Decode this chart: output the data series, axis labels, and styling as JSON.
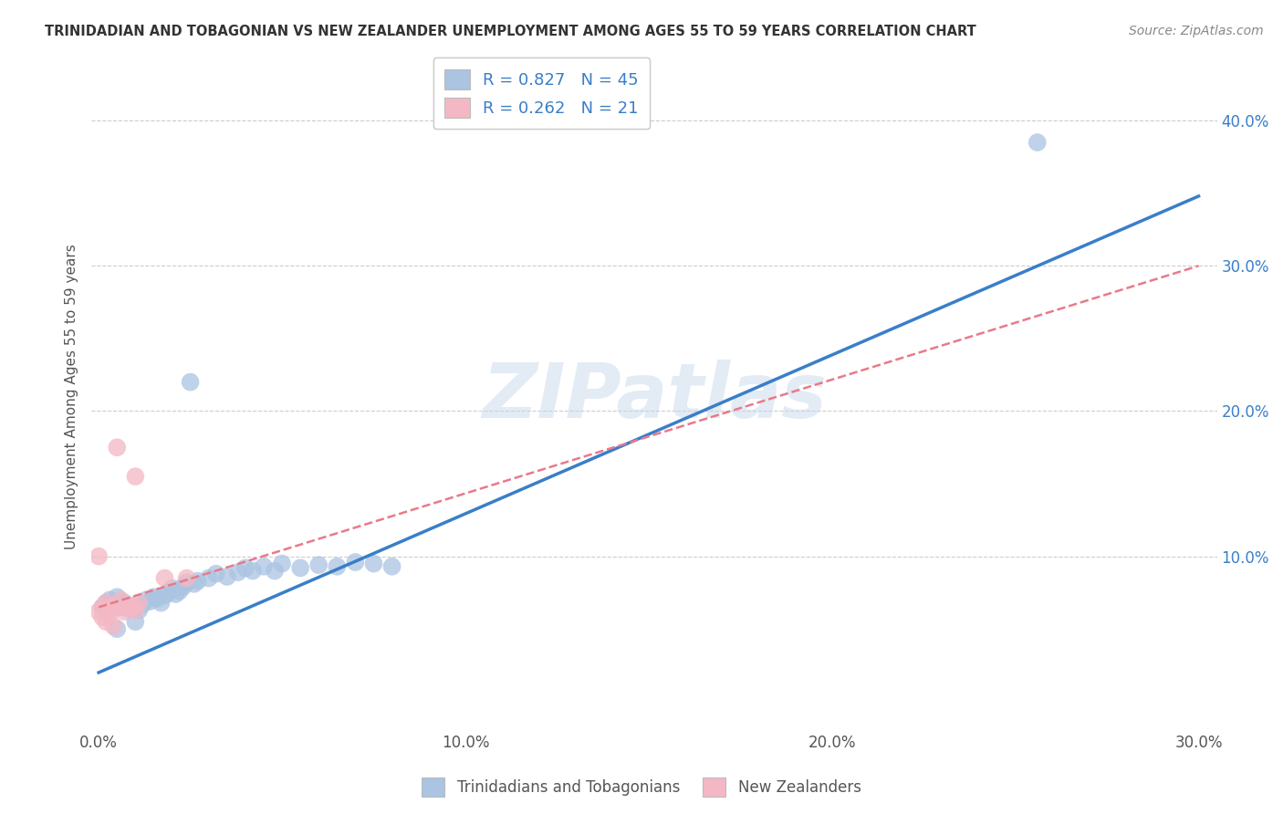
{
  "title": "TRINIDADIAN AND TOBAGONIAN VS NEW ZEALANDER UNEMPLOYMENT AMONG AGES 55 TO 59 YEARS CORRELATION CHART",
  "source": "Source: ZipAtlas.com",
  "ylabel": "Unemployment Among Ages 55 to 59 years",
  "xlim": [
    -0.002,
    0.305
  ],
  "ylim": [
    -0.02,
    0.44
  ],
  "xtick_labels": [
    "0.0%",
    "",
    "",
    "",
    "",
    "",
    "",
    "",
    "",
    "",
    "10.0%",
    "",
    "",
    "",
    "",
    "",
    "",
    "",
    "",
    "",
    "20.0%",
    "",
    "",
    "",
    "",
    "",
    "",
    "",
    "",
    "",
    "30.0%"
  ],
  "xtick_vals": [
    0.0,
    0.1,
    0.2,
    0.3
  ],
  "xtick_display": [
    "0.0%",
    "10.0%",
    "20.0%",
    "30.0%"
  ],
  "ytick_vals": [
    0.1,
    0.2,
    0.3,
    0.4
  ],
  "ytick_labels": [
    "10.0%",
    "20.0%",
    "30.0%",
    "40.0%"
  ],
  "legend_items": [
    {
      "label": "R = 0.827   N = 45",
      "color": "#aac4e2"
    },
    {
      "label": "R = 0.262   N = 21",
      "color": "#f4b8c4"
    }
  ],
  "legend_labels_bottom": [
    "Trinidadians and Tobagonians",
    "New Zealanders"
  ],
  "blue_scatter": [
    [
      0.001,
      0.065
    ],
    [
      0.002,
      0.068
    ],
    [
      0.003,
      0.07
    ],
    [
      0.004,
      0.066
    ],
    [
      0.005,
      0.072
    ],
    [
      0.006,
      0.065
    ],
    [
      0.007,
      0.068
    ],
    [
      0.008,
      0.064
    ],
    [
      0.009,
      0.066
    ],
    [
      0.01,
      0.065
    ],
    [
      0.011,
      0.063
    ],
    [
      0.012,
      0.067
    ],
    [
      0.013,
      0.07
    ],
    [
      0.014,
      0.069
    ],
    [
      0.015,
      0.072
    ],
    [
      0.016,
      0.071
    ],
    [
      0.017,
      0.068
    ],
    [
      0.018,
      0.073
    ],
    [
      0.019,
      0.075
    ],
    [
      0.02,
      0.078
    ],
    [
      0.021,
      0.074
    ],
    [
      0.022,
      0.076
    ],
    [
      0.023,
      0.079
    ],
    [
      0.024,
      0.082
    ],
    [
      0.025,
      0.22
    ],
    [
      0.026,
      0.081
    ],
    [
      0.027,
      0.083
    ],
    [
      0.03,
      0.085
    ],
    [
      0.032,
      0.088
    ],
    [
      0.035,
      0.086
    ],
    [
      0.038,
      0.089
    ],
    [
      0.04,
      0.092
    ],
    [
      0.042,
      0.09
    ],
    [
      0.045,
      0.093
    ],
    [
      0.048,
      0.09
    ],
    [
      0.05,
      0.095
    ],
    [
      0.055,
      0.092
    ],
    [
      0.06,
      0.094
    ],
    [
      0.065,
      0.093
    ],
    [
      0.07,
      0.096
    ],
    [
      0.075,
      0.095
    ],
    [
      0.08,
      0.093
    ],
    [
      0.01,
      0.055
    ],
    [
      0.005,
      0.05
    ],
    [
      0.256,
      0.385
    ]
  ],
  "pink_scatter": [
    [
      0.001,
      0.065
    ],
    [
      0.002,
      0.068
    ],
    [
      0.003,
      0.063
    ],
    [
      0.004,
      0.066
    ],
    [
      0.005,
      0.065
    ],
    [
      0.006,
      0.07
    ],
    [
      0.007,
      0.062
    ],
    [
      0.008,
      0.066
    ],
    [
      0.009,
      0.065
    ],
    [
      0.01,
      0.063
    ],
    [
      0.011,
      0.068
    ],
    [
      0.0,
      0.1
    ],
    [
      0.005,
      0.175
    ],
    [
      0.01,
      0.155
    ],
    [
      0.018,
      0.085
    ],
    [
      0.024,
      0.085
    ],
    [
      0.001,
      0.058
    ],
    [
      0.002,
      0.055
    ],
    [
      0.003,
      0.06
    ],
    [
      0.004,
      0.052
    ],
    [
      0.0,
      0.062
    ]
  ],
  "blue_line_x": [
    0.0,
    0.3
  ],
  "blue_line_y": [
    0.02,
    0.348
  ],
  "pink_line_x": [
    0.0,
    0.3
  ],
  "pink_line_y": [
    0.065,
    0.3
  ],
  "blue_scatter_color": "#aac4e2",
  "pink_scatter_color": "#f4b8c4",
  "blue_line_color": "#3a7ec8",
  "pink_line_color": "#e87a8a",
  "grid_color": "#cccccc",
  "watermark": "ZIPatlas",
  "background_color": "#ffffff"
}
